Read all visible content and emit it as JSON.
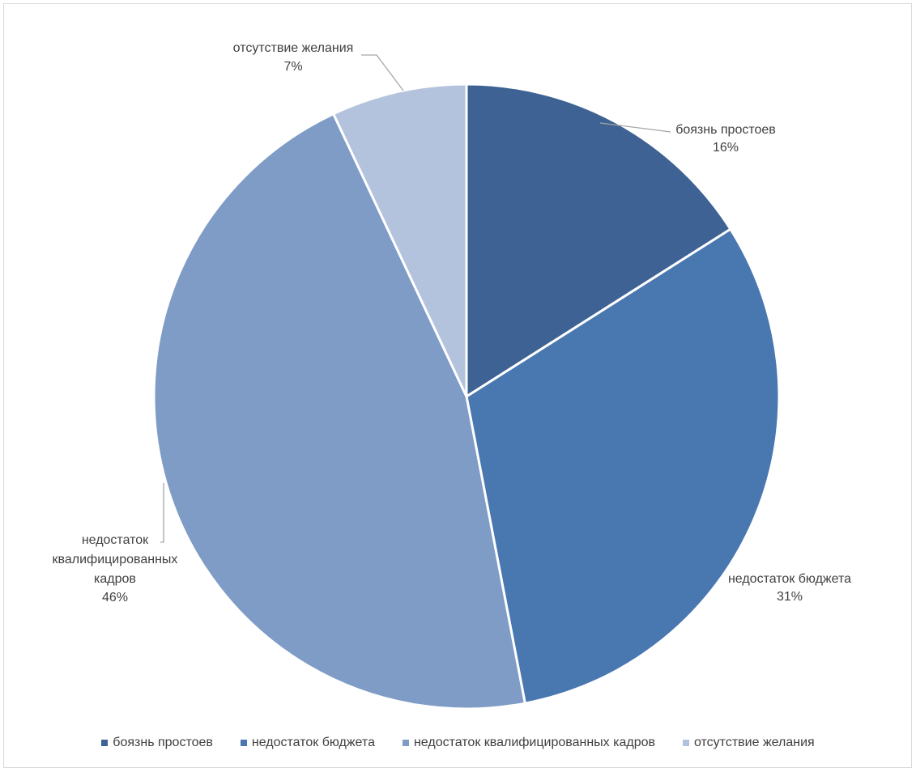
{
  "chart_data": {
    "type": "pie",
    "title": "",
    "legend_position": "bottom",
    "slices": [
      {
        "label": "боязнь простоев",
        "value": 16,
        "pct_text": "16%",
        "color": "#3d6293"
      },
      {
        "label": "недостаток бюджета",
        "value": 31,
        "pct_text": "31%",
        "color": "#4977b0"
      },
      {
        "label": "недостаток квалифицированных кадров",
        "label_lines": [
          "недостаток",
          "квалифицированных",
          "кадров"
        ],
        "value": 46,
        "pct_text": "46%",
        "color": "#7f9cc7"
      },
      {
        "label": "отсутствие желания",
        "value": 7,
        "pct_text": "7%",
        "color": "#b4c3dd"
      }
    ]
  }
}
